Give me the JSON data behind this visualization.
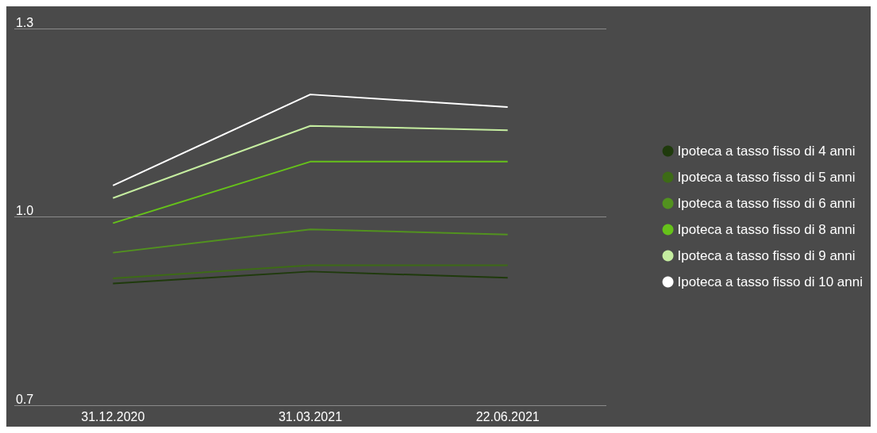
{
  "chart_data": {
    "type": "line",
    "categories": [
      "31.12.2020",
      "31.03.2021",
      "22.06.2021"
    ],
    "series": [
      {
        "name": "Ipoteca a tasso fisso di 4 anni",
        "color": "#1f3a0c",
        "values": [
          0.894,
          0.913,
          0.903
        ]
      },
      {
        "name": "Ipoteca a tasso fisso di 5 anni",
        "color": "#3d6b16",
        "values": [
          0.902,
          0.923,
          0.923
        ]
      },
      {
        "name": "Ipoteca a tasso fisso di 6 anni",
        "color": "#52921f",
        "values": [
          0.943,
          0.98,
          0.972
        ]
      },
      {
        "name": "Ipoteca a tasso fisso di 8 anni",
        "color": "#66c21a",
        "values": [
          0.99,
          1.088,
          1.088
        ]
      },
      {
        "name": "Ipoteca a tasso fisso di 9 anni",
        "color": "#c5eda0",
        "values": [
          1.03,
          1.145,
          1.138
        ]
      },
      {
        "name": "Ipoteca a tasso fisso di 10 anni",
        "color": "#ffffff",
        "values": [
          1.05,
          1.195,
          1.175
        ]
      }
    ],
    "ylim": [
      0.7,
      1.3
    ],
    "yticks": [
      0.7,
      {
        "value": 1.0,
        "label": "1.0"
      },
      1.3
    ],
    "grid": "y",
    "legend": "right",
    "marker": "none",
    "line_style": "solid"
  }
}
